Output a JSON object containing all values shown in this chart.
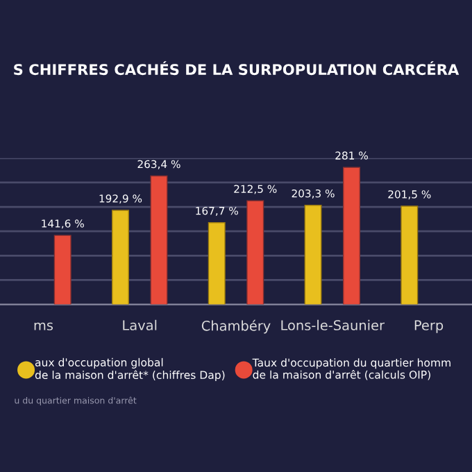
{
  "chart_data": {
    "type": "bar",
    "title": "S CHIFFRES CACHÉS DE LA SURPOPULATION CARCÉRA",
    "categories": [
      "ms",
      "Laval",
      "Chambéry",
      "Lons-le-Saunier",
      "Perp"
    ],
    "series": [
      {
        "name": "aux d'occupation global\nde la maison d'arrêt* (chiffres Dap)",
        "color": "#e8bf1e",
        "values": [
          null,
          192.9,
          167.7,
          203.3,
          201.5
        ],
        "value_labels": [
          null,
          "192,9 %",
          "167,7 %",
          "203,3 %",
          "201,5 %"
        ]
      },
      {
        "name": "Taux d'occupation du quartier homm\nde la maison d'arrêt (calculs OIP)",
        "color": "#e84a3a",
        "values": [
          141.6,
          263.4,
          212.5,
          281,
          null
        ],
        "value_labels": [
          "141,6 %",
          "263,4 %",
          "212,5 %",
          "281 %",
          null
        ]
      }
    ],
    "ylim": [
      0,
      300
    ],
    "yticks": [
      {
        "value": 50,
        "label": null
      },
      {
        "value": 100,
        "label": null
      },
      {
        "value": 150,
        "label": null
      },
      {
        "value": 200,
        "label": null
      },
      {
        "value": 250,
        "label": null
      },
      {
        "value": 300,
        "label": null
      }
    ],
    "tick_labels": "x",
    "grid": "y",
    "legend": "bottom",
    "marker": "circle",
    "annotations": [
      "u du quartier maison d'arrêt"
    ]
  }
}
